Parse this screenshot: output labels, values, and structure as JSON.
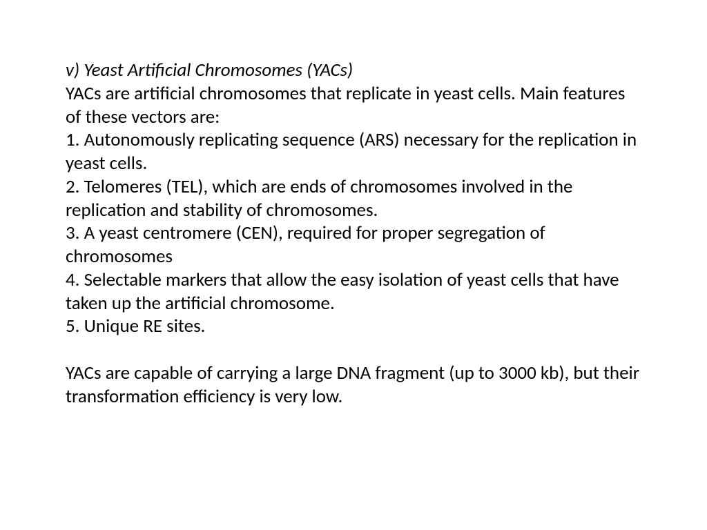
{
  "document": {
    "title": "v) Yeast Artificial Chromosomes (YACs)",
    "intro": "YACs are artificial chromosomes that replicate in yeast cells. Main features of these vectors are:",
    "item1": "1. Autonomously replicating sequence (ARS) necessary for the replication in yeast cells.",
    "item2": "2. Telomeres (TEL), which are ends of chromosomes involved in the replication and stability of chromosomes.",
    "item3": "3. A yeast centromere (CEN), required for proper segregation of chromosomes",
    "item4": "4. Selectable markers that allow the easy isolation of yeast cells that have taken up the artificial chromosome.",
    "item5": "5. Unique RE sites.",
    "footnote": "YACs are capable of carrying a large DNA fragment (up to 3000 kb), but their transformation efficiency is very low."
  },
  "style": {
    "background_color": "#ffffff",
    "text_color": "#000000",
    "font_family": "Calibri",
    "font_size_pt": 20,
    "title_style": "italic",
    "line_height": 1.25
  }
}
